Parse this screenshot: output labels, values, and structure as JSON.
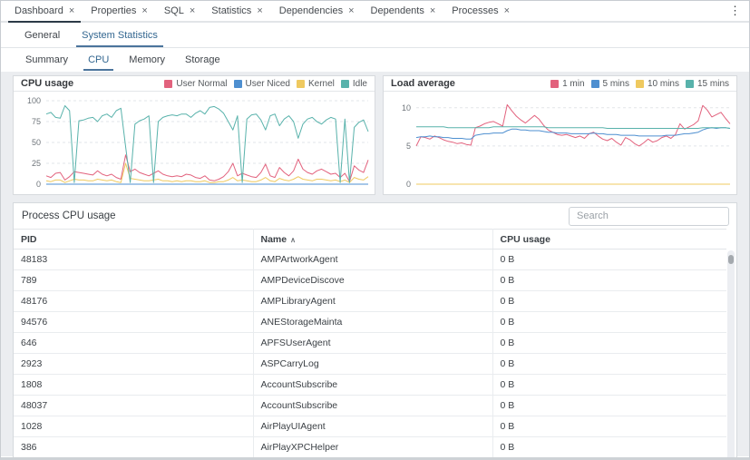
{
  "window": {
    "menu_icon": "⋮"
  },
  "main_tabs": {
    "close_glyph": "×",
    "items": [
      {
        "label": "Dashboard",
        "active": true
      },
      {
        "label": "Properties",
        "active": false
      },
      {
        "label": "SQL",
        "active": false
      },
      {
        "label": "Statistics",
        "active": false
      },
      {
        "label": "Dependencies",
        "active": false
      },
      {
        "label": "Dependents",
        "active": false
      },
      {
        "label": "Processes",
        "active": false
      }
    ]
  },
  "nav_tabs": {
    "items": [
      {
        "label": "General",
        "active": false
      },
      {
        "label": "System Statistics",
        "active": true
      }
    ]
  },
  "sub_tabs": {
    "items": [
      {
        "label": "Summary",
        "active": false
      },
      {
        "label": "CPU",
        "active": true
      },
      {
        "label": "Memory",
        "active": false
      },
      {
        "label": "Storage",
        "active": false
      }
    ]
  },
  "chart_data": [
    {
      "type": "line",
      "title": "CPU usage",
      "xlabel": "",
      "ylabel": "",
      "ylim": [
        0,
        100
      ],
      "yticks": [
        0,
        25,
        50,
        75,
        100
      ],
      "grid": true,
      "legend_position": "header-right",
      "series": [
        {
          "name": "User Normal",
          "color": "#e2627d",
          "values": [
            10,
            8,
            13,
            14,
            5,
            9,
            15,
            14,
            13,
            12,
            11,
            16,
            12,
            10,
            12,
            8,
            6,
            35,
            15,
            18,
            14,
            12,
            10,
            13,
            16,
            12,
            10,
            9,
            10,
            9,
            12,
            11,
            8,
            7,
            10,
            5,
            4,
            6,
            9,
            15,
            25,
            10,
            13,
            11,
            9,
            8,
            14,
            24,
            10,
            8,
            20,
            14,
            10,
            16,
            30,
            18,
            14,
            12,
            16,
            18,
            15,
            12,
            13,
            8,
            13,
            3,
            22,
            17,
            14,
            29
          ]
        },
        {
          "name": "User Niced",
          "color": "#4e8fd0",
          "values": [
            0,
            0,
            0,
            0,
            0,
            0,
            0,
            0,
            0,
            0,
            0,
            0,
            0,
            0,
            0,
            0,
            0,
            0,
            0,
            0,
            0,
            0,
            0,
            0,
            0,
            0,
            0,
            0,
            0,
            0,
            0,
            0,
            0,
            0,
            0,
            0,
            0,
            0,
            0,
            0,
            0,
            0,
            0,
            0,
            0,
            0,
            0,
            0,
            0,
            0,
            0,
            0,
            0,
            0,
            0,
            0,
            0,
            0,
            0,
            0,
            0,
            0,
            0,
            0,
            0,
            0,
            0,
            0,
            0,
            0
          ]
        },
        {
          "name": "Kernel",
          "color": "#efc95f",
          "values": [
            4,
            3,
            5,
            5,
            2,
            4,
            6,
            5,
            5,
            4,
            4,
            6,
            5,
            4,
            5,
            3,
            2,
            25,
            7,
            6,
            5,
            4,
            4,
            5,
            6,
            4,
            4,
            3,
            4,
            3,
            4,
            4,
            3,
            3,
            4,
            2,
            2,
            3,
            3,
            5,
            8,
            4,
            5,
            4,
            3,
            3,
            5,
            8,
            4,
            3,
            7,
            5,
            4,
            6,
            9,
            6,
            5,
            4,
            6,
            6,
            5,
            4,
            5,
            3,
            5,
            2,
            8,
            6,
            5,
            9
          ]
        },
        {
          "name": "Idle",
          "color": "#58b2ab",
          "values": [
            84,
            86,
            80,
            79,
            94,
            88,
            2,
            76,
            77,
            79,
            80,
            75,
            82,
            84,
            80,
            88,
            91,
            45,
            2,
            72,
            76,
            78,
            82,
            2,
            75,
            80,
            82,
            83,
            82,
            84,
            84,
            80,
            85,
            88,
            84,
            92,
            93,
            90,
            85,
            75,
            65,
            82,
            2,
            78,
            83,
            84,
            77,
            65,
            82,
            84,
            70,
            78,
            82,
            75,
            55,
            72,
            78,
            80,
            75,
            72,
            77,
            80,
            78,
            2,
            78,
            2,
            68,
            74,
            77,
            63
          ]
        }
      ]
    },
    {
      "type": "line",
      "title": "Load average",
      "xlabel": "",
      "ylabel": "",
      "ylim": [
        0,
        10
      ],
      "yticks": [
        0,
        5,
        10
      ],
      "grid": true,
      "legend_position": "header-right",
      "series": [
        {
          "name": "1 min",
          "color": "#e2627d",
          "values": [
            5.0,
            6.2,
            6.1,
            5.9,
            6.3,
            6.1,
            5.8,
            5.6,
            5.5,
            5.3,
            5.4,
            5.2,
            5.1,
            7.4,
            7.6,
            7.9,
            8.1,
            8.2,
            7.9,
            7.6,
            10.4,
            9.6,
            8.9,
            8.4,
            8.0,
            8.5,
            9.0,
            8.5,
            7.7,
            7.1,
            6.8,
            6.5,
            6.4,
            6.5,
            6.3,
            6.1,
            6.3,
            6.0,
            6.6,
            6.8,
            6.3,
            5.9,
            5.7,
            6.0,
            5.5,
            5.1,
            6.1,
            5.8,
            5.3,
            5.0,
            5.4,
            5.9,
            5.5,
            5.7,
            6.1,
            6.3,
            6.0,
            6.5,
            7.9,
            7.2,
            7.5,
            7.8,
            8.3,
            10.3,
            9.7,
            8.8,
            9.1,
            9.4,
            8.6,
            7.9
          ]
        },
        {
          "name": "5 mins",
          "color": "#4e8fd0",
          "values": [
            6.1,
            6.2,
            6.2,
            6.3,
            6.2,
            6.2,
            6.1,
            6.1,
            6.0,
            6.0,
            6.0,
            5.9,
            5.9,
            6.4,
            6.5,
            6.6,
            6.6,
            6.7,
            6.7,
            6.7,
            7.0,
            7.2,
            7.2,
            7.1,
            7.1,
            7.0,
            7.0,
            7.0,
            6.9,
            6.8,
            6.8,
            6.7,
            6.7,
            6.7,
            6.6,
            6.6,
            6.6,
            6.6,
            6.6,
            6.7,
            6.6,
            6.6,
            6.5,
            6.5,
            6.5,
            6.4,
            6.4,
            6.4,
            6.4,
            6.3,
            6.3,
            6.3,
            6.3,
            6.3,
            6.3,
            6.4,
            6.4,
            6.4,
            6.5,
            6.6,
            6.6,
            6.7,
            6.8,
            7.1,
            7.3,
            7.4,
            7.3,
            7.4,
            7.4,
            7.3
          ]
        },
        {
          "name": "10 mins",
          "color": "#efc95f",
          "values": [
            0,
            0,
            0,
            0,
            0,
            0,
            0,
            0,
            0,
            0,
            0,
            0,
            0,
            0,
            0,
            0,
            0,
            0,
            0,
            0,
            0,
            0,
            0,
            0,
            0,
            0,
            0,
            0,
            0,
            0,
            0,
            0,
            0,
            0,
            0,
            0,
            0,
            0,
            0,
            0,
            0,
            0,
            0,
            0,
            0,
            0,
            0,
            0,
            0,
            0,
            0,
            0,
            0,
            0,
            0,
            0,
            0,
            0,
            0,
            0,
            0,
            0,
            0,
            0,
            0,
            0,
            0,
            0,
            0,
            0
          ]
        },
        {
          "name": "15 mins",
          "color": "#58b2ab",
          "values": [
            7.5,
            7.5,
            7.5,
            7.5,
            7.5,
            7.5,
            7.5,
            7.4,
            7.4,
            7.4,
            7.4,
            7.4,
            7.4,
            7.4,
            7.4,
            7.4,
            7.4,
            7.5,
            7.5,
            7.5,
            7.5,
            7.5,
            7.5,
            7.5,
            7.5,
            7.5,
            7.5,
            7.5,
            7.5,
            7.4,
            7.4,
            7.4,
            7.4,
            7.4,
            7.4,
            7.4,
            7.4,
            7.4,
            7.4,
            7.4,
            7.4,
            7.4,
            7.3,
            7.3,
            7.3,
            7.3,
            7.3,
            7.3,
            7.3,
            7.3,
            7.3,
            7.3,
            7.3,
            7.3,
            7.3,
            7.3,
            7.3,
            7.3,
            7.3,
            7.3,
            7.3,
            7.3,
            7.3,
            7.4,
            7.4,
            7.4,
            7.4,
            7.4,
            7.4,
            7.3
          ]
        }
      ]
    }
  ],
  "process_table": {
    "title": "Process CPU usage",
    "search_placeholder": "Search",
    "sort_glyph": "∧",
    "columns": [
      {
        "label": "PID",
        "sorted": false
      },
      {
        "label": "Name",
        "sorted": true,
        "direction": "asc"
      },
      {
        "label": "CPU usage",
        "sorted": false
      }
    ],
    "rows": [
      [
        "48183",
        "AMPArtworkAgent",
        "0 B"
      ],
      [
        "789",
        "AMPDeviceDiscove",
        "0 B"
      ],
      [
        "48176",
        "AMPLibraryAgent",
        "0 B"
      ],
      [
        "94576",
        "ANEStorageMainta",
        "0 B"
      ],
      [
        "646",
        "APFSUserAgent",
        "0 B"
      ],
      [
        "2923",
        "ASPCarryLog",
        "0 B"
      ],
      [
        "1808",
        "AccountSubscribe",
        "0 B"
      ],
      [
        "48037",
        "AccountSubscribe",
        "0 B"
      ],
      [
        "1028",
        "AirPlayUIAgent",
        "0 B"
      ],
      [
        "386",
        "AirPlayXPCHelper",
        "0 B"
      ]
    ]
  },
  "colors": {
    "active_tab_underline": "#2c3a47",
    "active_link": "#326690",
    "content_background": "#ebedf0",
    "series_pink": "#e2627d",
    "series_blue": "#4e8fd0",
    "series_yellow": "#efc95f",
    "series_teal": "#58b2ab"
  }
}
